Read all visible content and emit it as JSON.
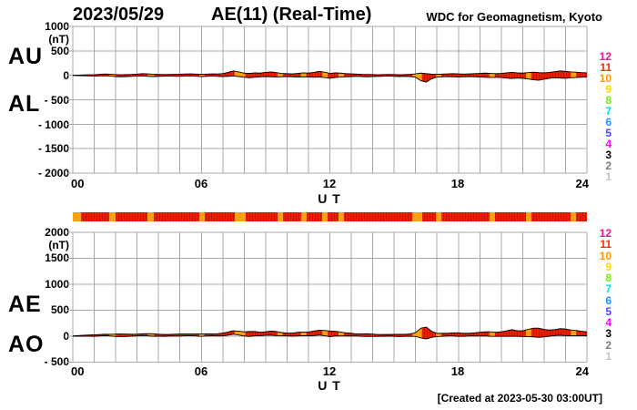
{
  "header": {
    "date": "2023/05/29",
    "title": "AE(11) (Real-Time)",
    "source": "WDC for Geomagnetism, Kyoto"
  },
  "footer": {
    "created_note": "[Created at 2023-05-30 03:00UT]"
  },
  "plot_labels": {
    "top_upper": "AU",
    "top_lower": "AL",
    "bottom_upper": "AE",
    "bottom_lower": "AO"
  },
  "axes": {
    "x_label": "U T",
    "x_ticks": [
      "00",
      "06",
      "12",
      "18",
      "24"
    ],
    "x_values": [
      0,
      6,
      12,
      18,
      24
    ],
    "top_unit": "(nT)",
    "top_y_ticks": [
      "1000",
      "500",
      "0",
      "- 500",
      "- 1000",
      "- 1500",
      "- 2000"
    ],
    "top_y_values": [
      1000,
      500,
      0,
      -500,
      -1000,
      -1500,
      -2000
    ],
    "bottom_unit": "(nT)",
    "bottom_y_ticks": [
      "2000",
      "1500",
      "1000",
      "500",
      "0",
      "- 500"
    ],
    "bottom_y_values": [
      2000,
      1500,
      1000,
      500,
      0,
      -500
    ]
  },
  "legend": {
    "station_counts": [
      "12",
      "11",
      "10",
      "9",
      "8",
      "7",
      "6",
      "5",
      "4",
      "3",
      "2",
      "1"
    ],
    "colors": {
      "12": "#F0148C",
      "11": "#FF2800",
      "10": "#FF9800",
      "9": "#FFD800",
      "8": "#7CE817",
      "7": "#00E0E8",
      "6": "#2090FF",
      "5": "#4848FF",
      "4": "#FF00FF",
      "3": "#000000",
      "2": "#808080",
      "1": "#C4C4C4"
    }
  },
  "colors": {
    "trace_fill": "#EA2000",
    "trace_fill_dark": "#C21500",
    "trace_alt": "#FFA010",
    "outline": "#000000",
    "grid": "#A8A8A8"
  },
  "chart_data": [
    {
      "type": "area",
      "title": "AU and AL auroral electrojet indices, 2023/05/29",
      "x_unit": "hour UT",
      "y_unit": "nT",
      "ylim": [
        -2000,
        1000
      ],
      "x": [
        0,
        0.25,
        0.5,
        0.75,
        1,
        1.25,
        1.5,
        1.75,
        2,
        2.25,
        2.5,
        2.75,
        3,
        3.25,
        3.5,
        3.75,
        4,
        4.25,
        4.5,
        4.75,
        5,
        5.25,
        5.5,
        5.75,
        6,
        6.25,
        6.5,
        6.75,
        7,
        7.25,
        7.5,
        7.75,
        8,
        8.25,
        8.5,
        8.75,
        9,
        9.25,
        9.5,
        9.75,
        10,
        10.25,
        10.5,
        10.75,
        11,
        11.25,
        11.5,
        11.75,
        12,
        12.25,
        12.5,
        12.75,
        13,
        13.25,
        13.5,
        13.75,
        14,
        14.25,
        14.5,
        14.75,
        15,
        15.25,
        15.5,
        15.75,
        16,
        16.25,
        16.5,
        16.75,
        17,
        17.25,
        17.5,
        17.75,
        18,
        18.25,
        18.5,
        18.75,
        19,
        19.25,
        19.5,
        19.75,
        20,
        20.25,
        20.5,
        20.75,
        21,
        21.25,
        21.5,
        21.75,
        22,
        22.25,
        22.5,
        22.75,
        23,
        23.25,
        23.5,
        23.75,
        24
      ],
      "series": [
        {
          "name": "AU",
          "values": [
            2,
            5,
            8,
            10,
            12,
            20,
            28,
            22,
            15,
            12,
            15,
            18,
            25,
            35,
            30,
            22,
            18,
            15,
            18,
            20,
            22,
            28,
            30,
            25,
            20,
            25,
            30,
            28,
            35,
            60,
            90,
            70,
            45,
            40,
            50,
            45,
            60,
            70,
            55,
            40,
            35,
            30,
            40,
            50,
            45,
            60,
            80,
            65,
            40,
            50,
            45,
            35,
            30,
            25,
            20,
            18,
            15,
            12,
            15,
            18,
            15,
            12,
            15,
            20,
            30,
            45,
            35,
            25,
            20,
            25,
            30,
            35,
            30,
            25,
            30,
            35,
            40,
            45,
            40,
            35,
            40,
            50,
            60,
            50,
            45,
            55,
            65,
            55,
            50,
            60,
            75,
            90,
            80,
            70,
            65,
            55,
            50
          ]
        },
        {
          "name": "AL",
          "values": [
            -3,
            -6,
            -10,
            -12,
            -15,
            -12,
            -10,
            -15,
            -25,
            -30,
            -25,
            -20,
            -15,
            -12,
            -20,
            -25,
            -20,
            -18,
            -15,
            -18,
            -20,
            -15,
            -12,
            -18,
            -25,
            -20,
            -15,
            -20,
            -25,
            -20,
            -15,
            -25,
            -40,
            -50,
            -40,
            -30,
            -25,
            -30,
            -35,
            -30,
            -25,
            -30,
            -35,
            -30,
            -35,
            -40,
            -35,
            -45,
            -60,
            -45,
            -35,
            -30,
            -25,
            -20,
            -25,
            -30,
            -25,
            -20,
            -18,
            -15,
            -20,
            -25,
            -20,
            -25,
            -40,
            -110,
            -140,
            -70,
            -35,
            -30,
            -25,
            -30,
            -35,
            -30,
            -25,
            -30,
            -35,
            -40,
            -45,
            -40,
            -45,
            -55,
            -65,
            -55,
            -60,
            -75,
            -90,
            -100,
            -80,
            -60,
            -50,
            -55,
            -60,
            -50,
            -45,
            -40,
            -35
          ]
        }
      ]
    },
    {
      "type": "heatmap",
      "title": "Number of reporting stations vs time (color-coded bar)",
      "segments": [
        [
          0,
          0.4,
          10
        ],
        [
          0.4,
          1.7,
          11
        ],
        [
          1.7,
          2.0,
          10
        ],
        [
          2.0,
          3.5,
          11
        ],
        [
          3.5,
          3.8,
          10
        ],
        [
          3.8,
          5.9,
          11
        ],
        [
          5.9,
          6.15,
          10
        ],
        [
          6.15,
          7.55,
          11
        ],
        [
          7.55,
          8.05,
          10
        ],
        [
          8.05,
          9.55,
          11
        ],
        [
          9.55,
          9.8,
          10
        ],
        [
          9.8,
          10.65,
          11
        ],
        [
          10.65,
          10.9,
          10
        ],
        [
          10.9,
          11.65,
          11
        ],
        [
          11.65,
          11.9,
          10
        ],
        [
          11.9,
          12.4,
          11
        ],
        [
          12.4,
          12.65,
          10
        ],
        [
          12.65,
          15.85,
          11
        ],
        [
          15.85,
          16.3,
          10
        ],
        [
          16.3,
          16.95,
          11
        ],
        [
          16.95,
          17.2,
          10
        ],
        [
          17.2,
          19.45,
          11
        ],
        [
          19.45,
          19.7,
          10
        ],
        [
          19.7,
          21.15,
          11
        ],
        [
          21.15,
          21.4,
          10
        ],
        [
          21.4,
          23.25,
          11
        ],
        [
          23.25,
          23.5,
          10
        ],
        [
          23.5,
          24,
          11
        ]
      ]
    },
    {
      "type": "area",
      "title": "AE and AO auroral electrojet indices, 2023/05/29",
      "x_unit": "hour UT",
      "y_unit": "nT",
      "ylim": [
        -500,
        2000
      ],
      "x": [
        0,
        0.25,
        0.5,
        0.75,
        1,
        1.25,
        1.5,
        1.75,
        2,
        2.25,
        2.5,
        2.75,
        3,
        3.25,
        3.5,
        3.75,
        4,
        4.25,
        4.5,
        4.75,
        5,
        5.25,
        5.5,
        5.75,
        6,
        6.25,
        6.5,
        6.75,
        7,
        7.25,
        7.5,
        7.75,
        8,
        8.25,
        8.5,
        8.75,
        9,
        9.25,
        9.5,
        9.75,
        10,
        10.25,
        10.5,
        10.75,
        11,
        11.25,
        11.5,
        11.75,
        12,
        12.25,
        12.5,
        12.75,
        13,
        13.25,
        13.5,
        13.75,
        14,
        14.25,
        14.5,
        14.75,
        15,
        15.25,
        15.5,
        15.75,
        16,
        16.25,
        16.5,
        16.75,
        17,
        17.25,
        17.5,
        17.75,
        18,
        18.25,
        18.5,
        18.75,
        19,
        19.25,
        19.5,
        19.75,
        20,
        20.25,
        20.5,
        20.75,
        21,
        21.25,
        21.5,
        21.75,
        22,
        22.25,
        22.5,
        22.75,
        23,
        23.25,
        23.5,
        23.75,
        24
      ],
      "series": [
        {
          "name": "AE",
          "values": [
            5,
            11,
            18,
            22,
            27,
            32,
            38,
            37,
            40,
            42,
            40,
            38,
            40,
            47,
            50,
            47,
            38,
            33,
            33,
            38,
            42,
            43,
            42,
            43,
            45,
            45,
            45,
            48,
            60,
            80,
            105,
            95,
            85,
            90,
            90,
            75,
            85,
            100,
            90,
            70,
            60,
            60,
            75,
            80,
            80,
            100,
            115,
            110,
            100,
            95,
            80,
            65,
            55,
            45,
            45,
            48,
            40,
            32,
            33,
            33,
            35,
            37,
            35,
            45,
            70,
            155,
            175,
            95,
            55,
            55,
            55,
            65,
            65,
            55,
            55,
            65,
            75,
            85,
            85,
            75,
            85,
            105,
            125,
            105,
            105,
            130,
            155,
            155,
            130,
            120,
            125,
            145,
            140,
            120,
            110,
            95,
            85
          ]
        },
        {
          "name": "AO",
          "values": [
            -1,
            -1,
            -1,
            -1,
            -2,
            4,
            9,
            4,
            -5,
            -9,
            -5,
            -1,
            5,
            12,
            5,
            -2,
            -1,
            -2,
            2,
            1,
            1,
            7,
            9,
            4,
            -3,
            3,
            8,
            4,
            5,
            20,
            38,
            23,
            3,
            -5,
            5,
            8,
            18,
            20,
            10,
            5,
            5,
            0,
            3,
            10,
            5,
            10,
            23,
            10,
            -10,
            3,
            5,
            3,
            3,
            3,
            -3,
            -6,
            -5,
            -4,
            -2,
            2,
            -3,
            -7,
            -3,
            -3,
            -5,
            -33,
            -53,
            -23,
            -8,
            -3,
            3,
            3,
            -3,
            -3,
            3,
            3,
            3,
            3,
            -3,
            -3,
            -3,
            -3,
            -3,
            -3,
            -8,
            -10,
            -13,
            -23,
            -15,
            0,
            13,
            18,
            10,
            10,
            10,
            8,
            8
          ]
        }
      ]
    }
  ]
}
